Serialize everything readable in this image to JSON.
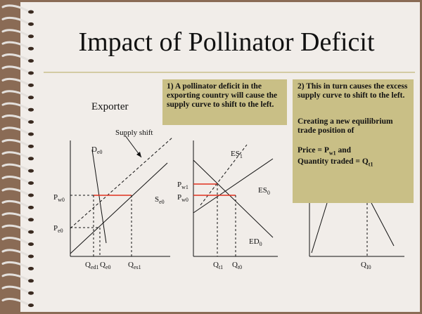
{
  "slide": {
    "title": "Impact of Pollinator Deficit",
    "exporter_label": "Exporter",
    "colors": {
      "paper": "#f1ede9",
      "border": "#8a6b55",
      "note_fill": "#c9bf86",
      "rule": "#c9c08e",
      "highlight": "#e0301e"
    }
  },
  "note1": {
    "text": "1) A pollinator deficit in the exporting country will cause the supply curve to shift to the left."
  },
  "note2": {
    "line1": "2) This in turn causes the excess supply curve to shift to the left.",
    "line2": "Creating a new equilibrium trade position of",
    "price_prefix": "Price = P",
    "price_sub": "w1",
    "price_suffix": " and",
    "qty_prefix": "Quantity traded = Q",
    "qty_sub": "t1"
  },
  "exporter_graph": {
    "supply_shift_label": "Supply shift",
    "demand": {
      "main": "D",
      "sub": "e0"
    },
    "supply": {
      "main": "S",
      "sub": "e0"
    },
    "price_world": {
      "main": "P",
      "sub": "w0"
    },
    "price_exporter": {
      "main": "P",
      "sub": "e0"
    },
    "q_demand": {
      "main": "Q",
      "sub": "ed1"
    },
    "q_equil": {
      "main": "Q",
      "sub": "e0"
    },
    "q_supply": {
      "main": "Q",
      "sub": "es1"
    }
  },
  "trade_graph": {
    "es1": {
      "main": "ES",
      "sub": "1"
    },
    "es0": {
      "main": "ES",
      "sub": "0"
    },
    "ed0": {
      "main": "ED",
      "sub": "0"
    },
    "pw1": {
      "main": "P",
      "sub": "w1"
    },
    "pw0": {
      "main": "P",
      "sub": "w0"
    },
    "qt1": {
      "main": "Q",
      "sub": "t1"
    },
    "qt0": {
      "main": "Q",
      "sub": "t0"
    }
  },
  "importer_graph": {
    "qi0": {
      "main": "Q",
      "sub": "I0"
    }
  }
}
